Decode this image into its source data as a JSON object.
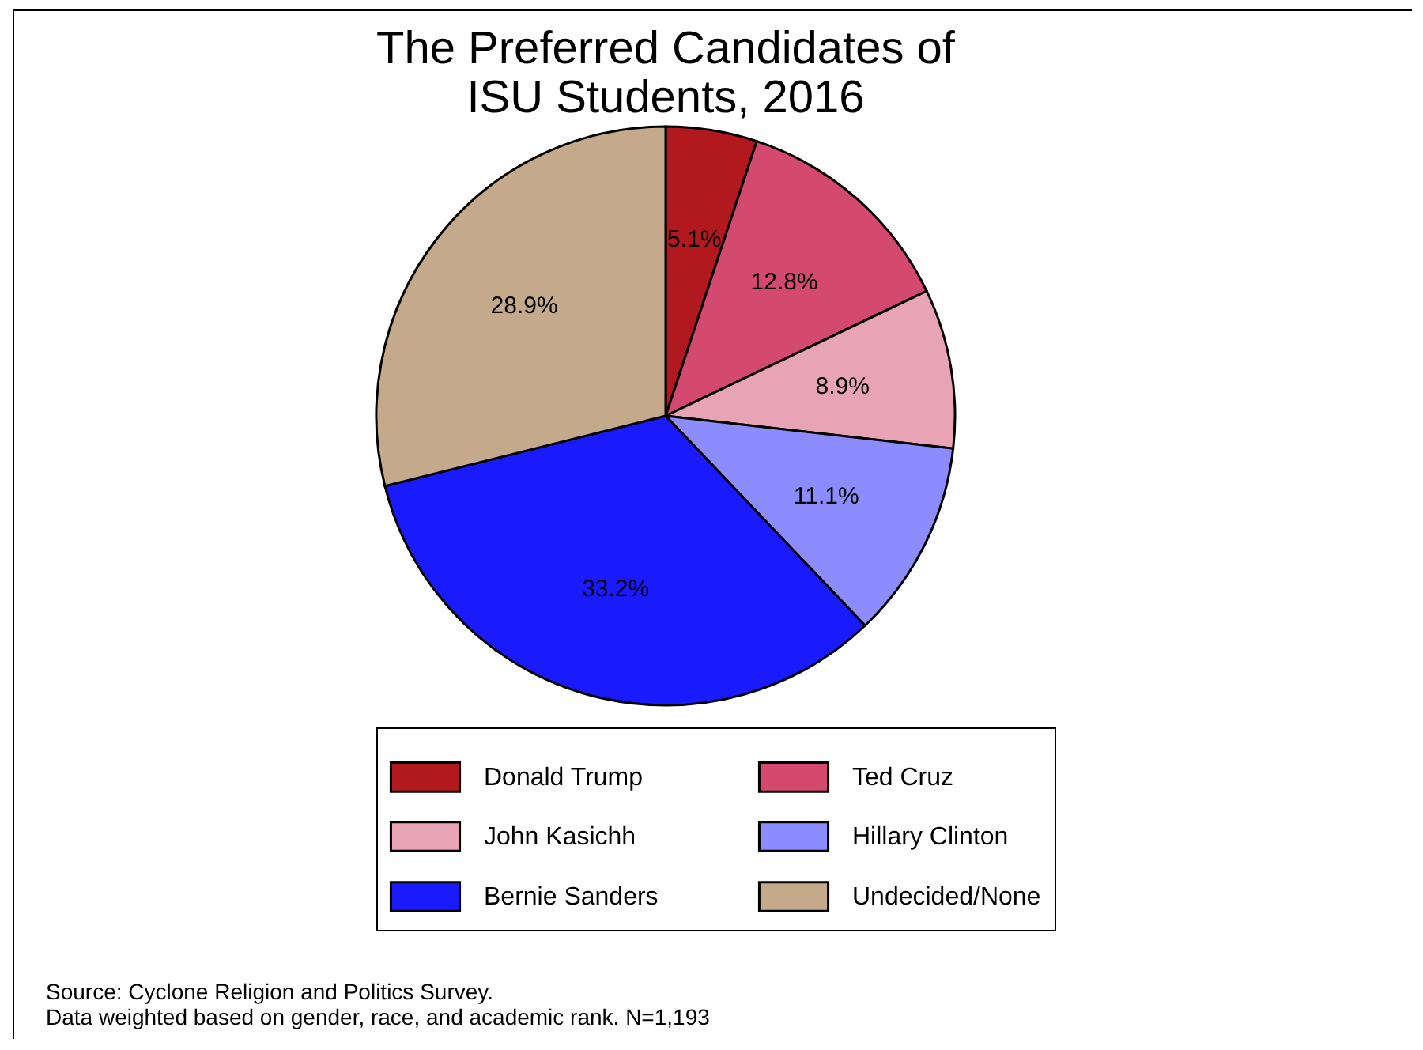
{
  "chart_data": {
    "type": "pie",
    "title": "The Preferred Candidates of\nISU Students, 2016",
    "categories": [
      "Donald Trump",
      "Ted Cruz",
      "John Kasichh",
      "Hillary Clinton",
      "Bernie Sanders",
      "Undecided/None"
    ],
    "values": [
      5.1,
      12.8,
      8.9,
      11.1,
      33.2,
      28.9
    ],
    "value_labels": [
      "5.1%",
      "12.8%",
      "8.9%",
      "11.1%",
      "33.2%",
      "28.9%"
    ],
    "colors": [
      "#b2191e",
      "#d44a6e",
      "#e8a3b4",
      "#8c8cff",
      "#1a1aff",
      "#c4a98a"
    ],
    "legend": "bottom",
    "annotations": [
      "Source: Cyclone Religion and Politics Survey.",
      "Data weighted based on gender, race, and academic rank. N=1,193"
    ]
  }
}
